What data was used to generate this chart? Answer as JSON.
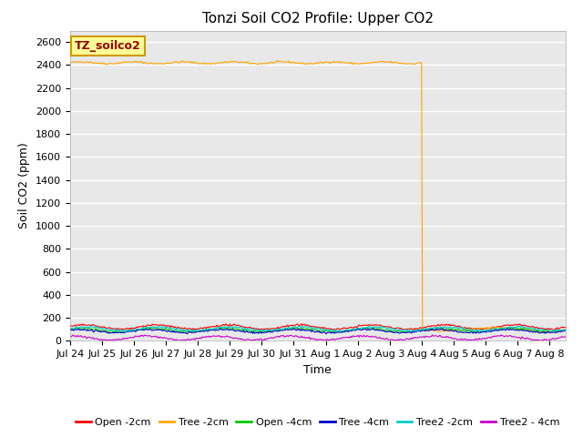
{
  "title": "Tonzi Soil CO2 Profile: Upper CO2",
  "ylabel": "Soil CO2 (ppm)",
  "xlabel": "Time",
  "ylim": [
    0,
    2700
  ],
  "yticks": [
    0,
    200,
    400,
    600,
    800,
    1000,
    1200,
    1400,
    1600,
    1800,
    2000,
    2200,
    2400,
    2600
  ],
  "fig_bg_color": "#ffffff",
  "plot_bg_color": "#e8e8e8",
  "grid_color": "#ffffff",
  "annotation_label": "TZ_soilco2",
  "annotation_box_facecolor": "#ffff99",
  "annotation_box_edgecolor": "#cc9900",
  "annotation_text_color": "#990000",
  "series": [
    {
      "label": "Open -2cm",
      "color": "#ff0000"
    },
    {
      "label": "Tree -2cm",
      "color": "#ffa500"
    },
    {
      "label": "Open -4cm",
      "color": "#00cc00"
    },
    {
      "label": "Tree -4cm",
      "color": "#0000cc"
    },
    {
      "label": "Tree2 -2cm",
      "color": "#00cccc"
    },
    {
      "label": "Tree2 - 4cm",
      "color": "#cc00cc"
    }
  ],
  "n_points": 500,
  "start_day": 0,
  "end_day": 15.5,
  "orange_drop_day": 11.0,
  "tick_labels": [
    "Jul 24",
    "Jul 25",
    "Jul 26",
    "Jul 27",
    "Jul 28",
    "Jul 29",
    "Jul 30",
    "Jul 31",
    "Aug 1",
    "Aug 2",
    "Aug 3",
    "Aug 4",
    "Aug 5",
    "Aug 6",
    "Aug 7",
    "Aug 8"
  ],
  "tick_positions": [
    0,
    1,
    2,
    3,
    4,
    5,
    6,
    7,
    8,
    9,
    10,
    11,
    12,
    13,
    14,
    15
  ],
  "title_fontsize": 11,
  "axis_label_fontsize": 9,
  "tick_fontsize": 8,
  "legend_fontsize": 8
}
